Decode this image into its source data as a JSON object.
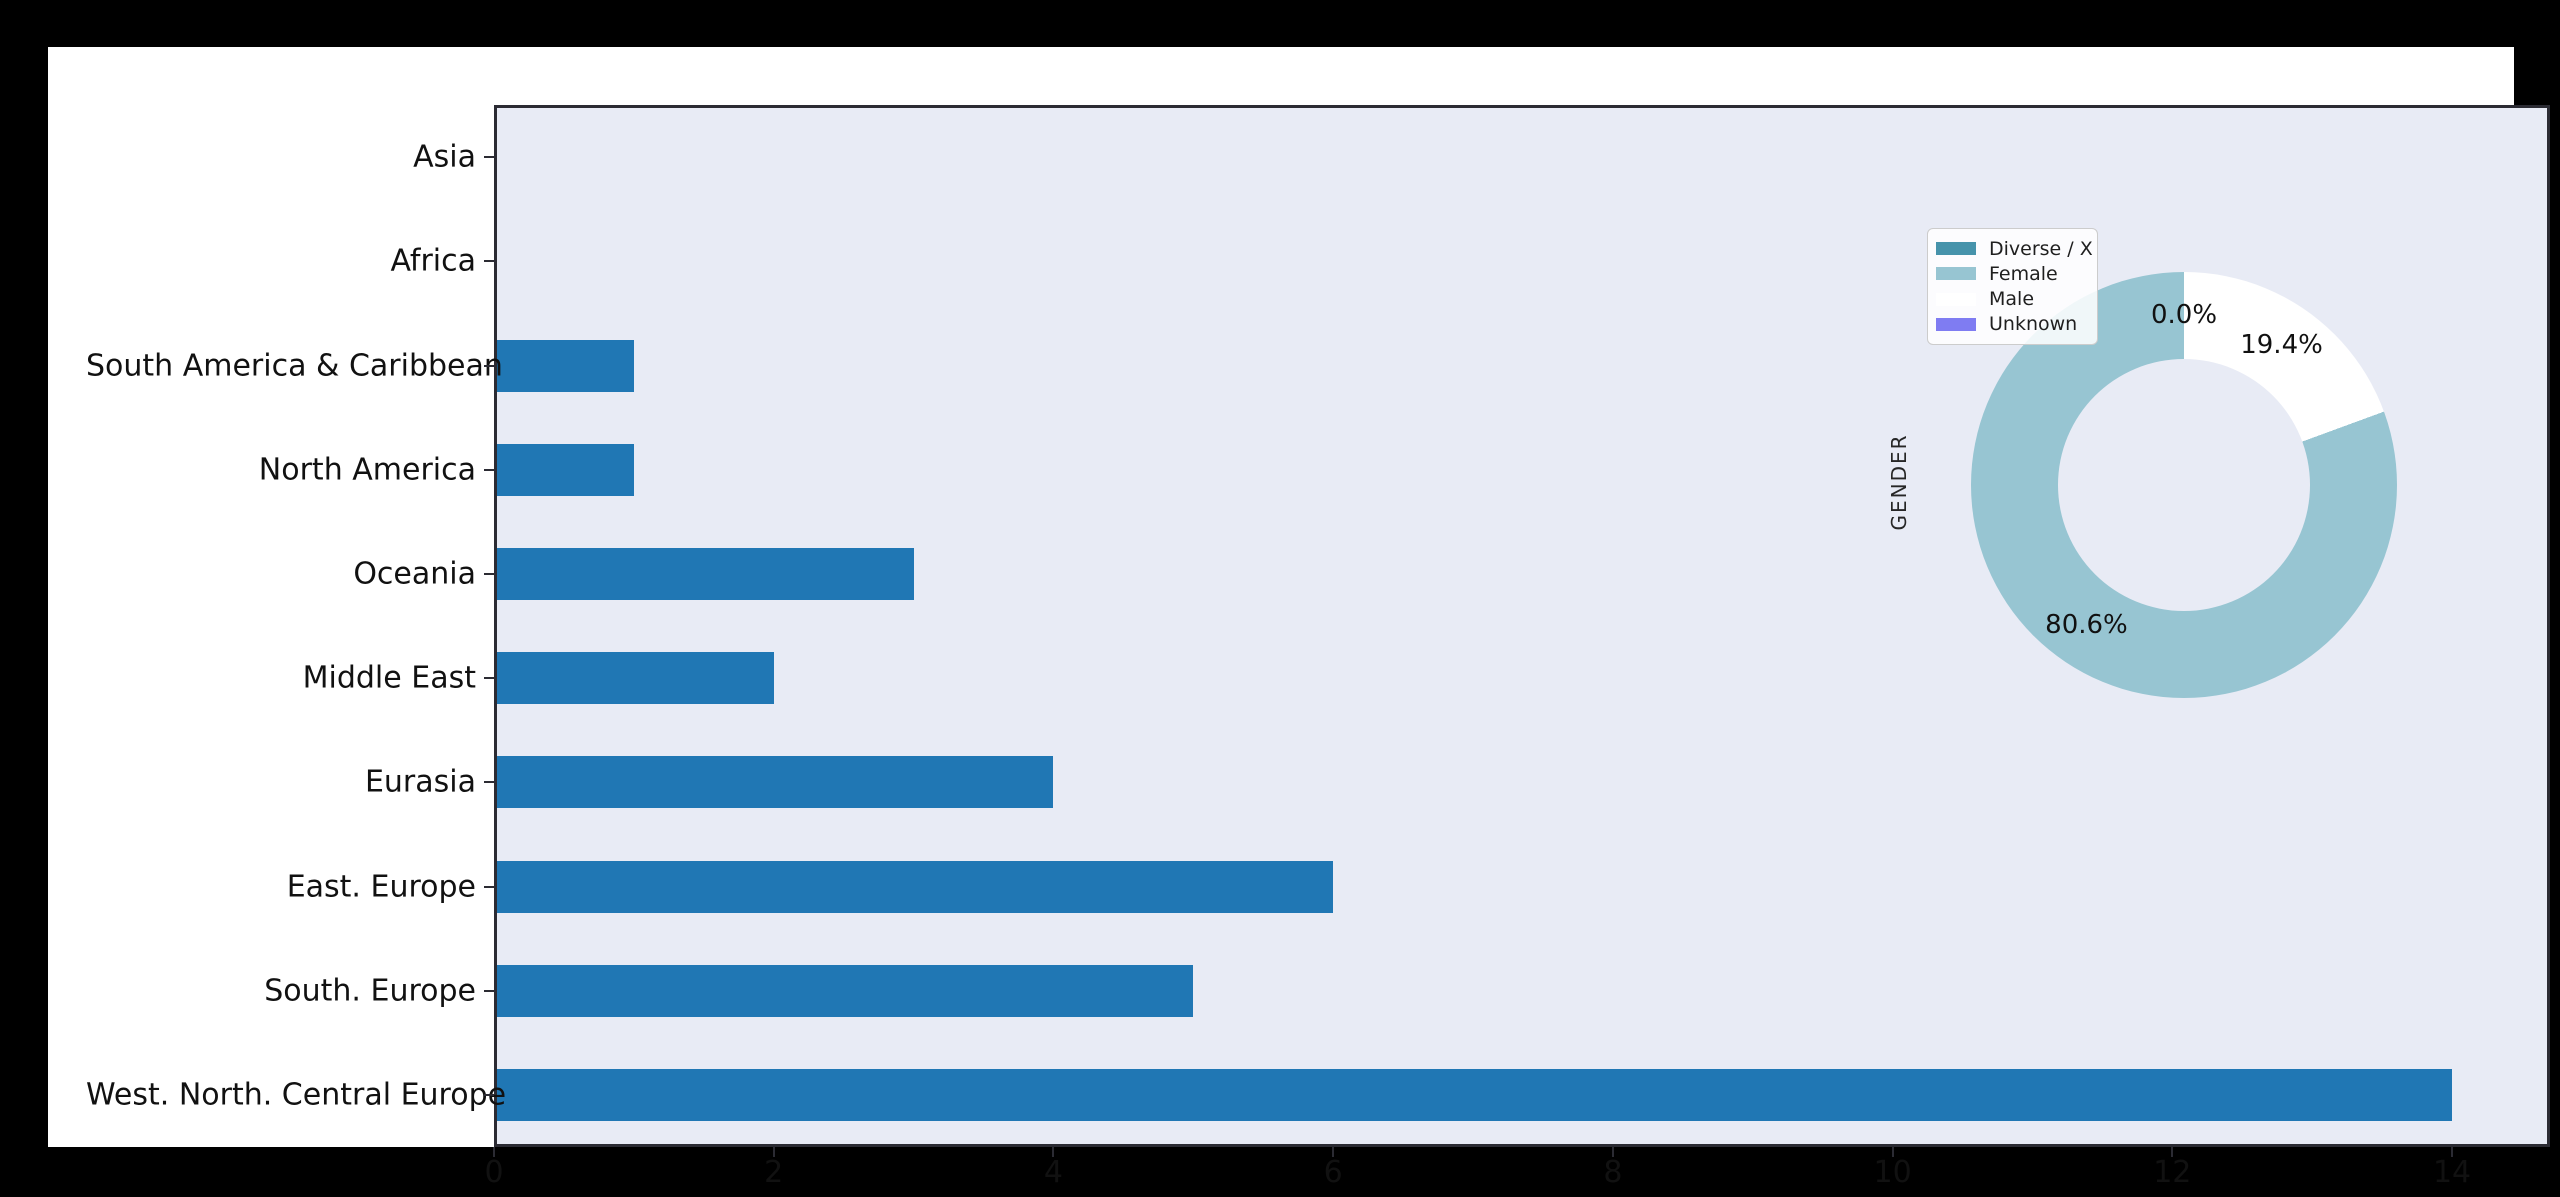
{
  "chart_data": [
    {
      "type": "bar",
      "orientation": "horizontal",
      "title": "",
      "xlabel": "",
      "ylabel": "",
      "categories_top_to_bottom": [
        "Asia",
        "Africa",
        "South America & Caribbean",
        "North America",
        "Oceania",
        "Middle East",
        "Eurasia",
        "East. Europe",
        "South. Europe",
        "West. North. Central Europe"
      ],
      "values": [
        0,
        0,
        1,
        1,
        3,
        2,
        4,
        6,
        5,
        14
      ],
      "xlim": [
        0,
        14.7
      ],
      "xticks": [
        0,
        2,
        4,
        6,
        8,
        10,
        12,
        14
      ],
      "grid": false,
      "bar_color": "#2077b4",
      "plot_bg_color": "#e8ebf5"
    },
    {
      "type": "pie",
      "donut": true,
      "ylabel": "GENDER",
      "start_angle": 90,
      "counterclock": true,
      "legend_position": "upper left of inset",
      "slices": [
        {
          "label": "Diverse / X",
          "value_pct": 0.0,
          "color": "#4693ab",
          "pct_label": "0.0%"
        },
        {
          "label": "Female",
          "value_pct": 80.6,
          "color": "#97c5d2",
          "pct_label": "80.6%"
        },
        {
          "label": "Male",
          "value_pct": 19.4,
          "color": "#ffffff",
          "pct_label": "19.4%"
        },
        {
          "label": "Unknown",
          "value_pct": 0.0,
          "color": "#7f7cf2",
          "pct_label": ""
        }
      ]
    }
  ]
}
